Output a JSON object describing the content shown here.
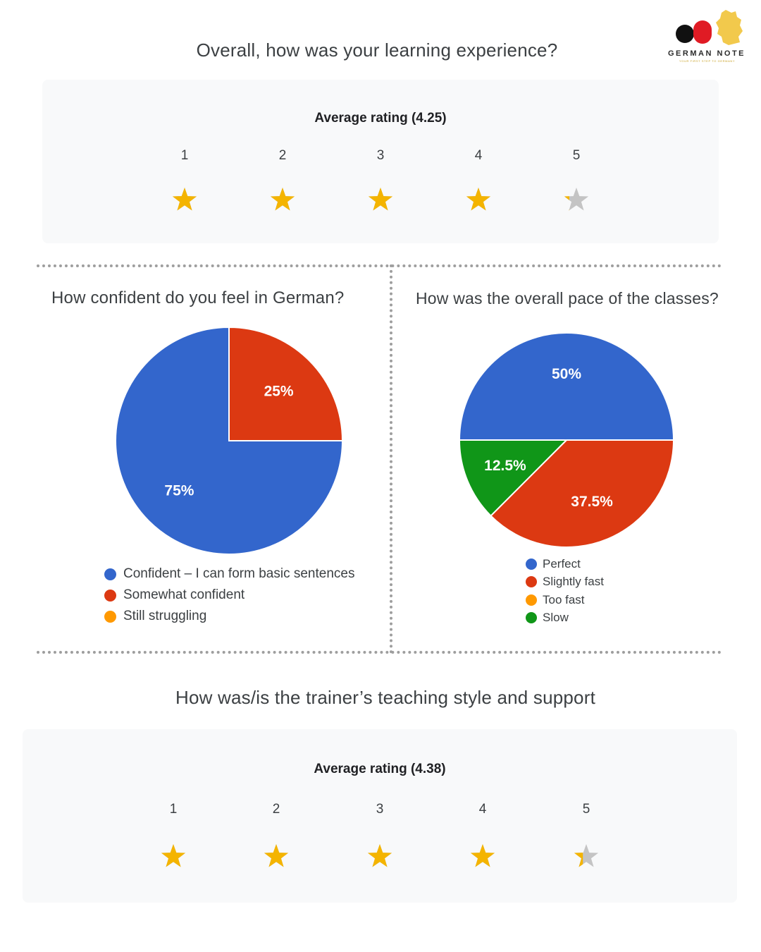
{
  "logo": {
    "name": "GERMAN NOTE",
    "tagline": "YOUR FIRST STEP TO GERMANY"
  },
  "colors": {
    "blue": "#3366cc",
    "red": "#dc3912",
    "orange": "#ff9900",
    "green": "#109618",
    "star_gold": "#f4b400",
    "star_grey": "#c4c4c4"
  },
  "chart_data": [
    {
      "type": "rating",
      "title": "Overall, how was your learning experience?",
      "avg_label": "Average rating (4.25)",
      "average": 4.25,
      "scale": [
        "1",
        "2",
        "3",
        "4",
        "5"
      ],
      "max": 5
    },
    {
      "type": "pie",
      "title": "How confident do you feel in German?",
      "categories": [
        "Confident – I can form basic sentences",
        "Somewhat confident",
        "Still struggling"
      ],
      "values": [
        75,
        25,
        0
      ],
      "labels": [
        "75%",
        "25%",
        ""
      ],
      "colors": [
        "#3366cc",
        "#dc3912",
        "#ff9900"
      ],
      "legend": "bottom"
    },
    {
      "type": "pie",
      "title": "How was the overall pace of the classes?",
      "categories": [
        "Perfect",
        "Slightly fast",
        "Too fast",
        "Slow"
      ],
      "values": [
        50,
        37.5,
        0,
        12.5
      ],
      "labels": [
        "50%",
        "37.5%",
        "",
        "12.5%"
      ],
      "colors": [
        "#3366cc",
        "#dc3912",
        "#ff9900",
        "#109618"
      ],
      "legend": "bottom"
    },
    {
      "type": "rating",
      "title": "How was/is the trainer’s teaching style and support",
      "avg_label": "Average rating (4.38)",
      "average": 4.38,
      "scale": [
        "1",
        "2",
        "3",
        "4",
        "5"
      ],
      "max": 5
    }
  ]
}
